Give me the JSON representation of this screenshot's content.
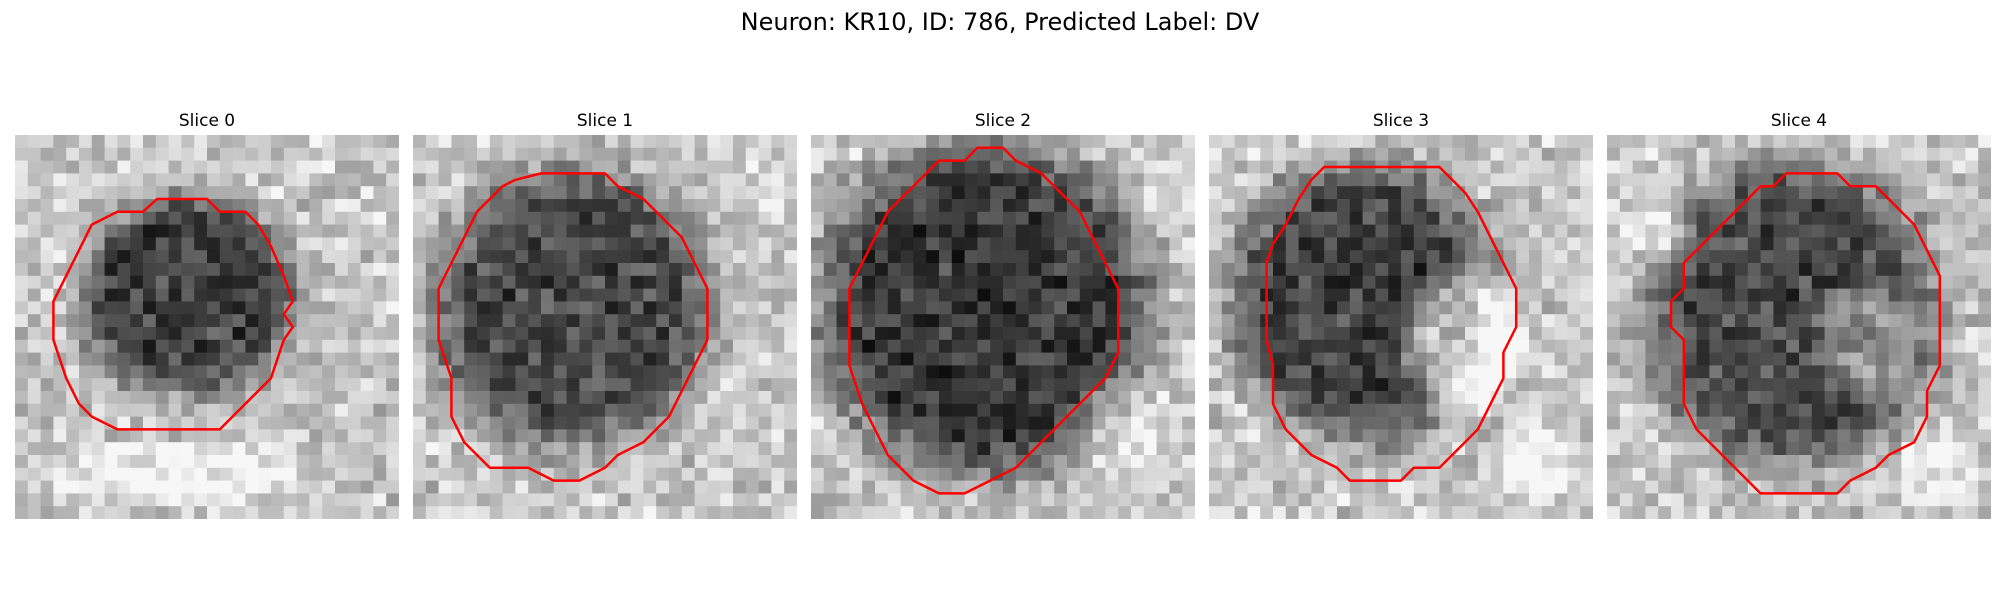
{
  "figure": {
    "title": "Neuron: KR10, ID: 786, Predicted Label: DV",
    "contour_color": "#ff0000"
  },
  "panels": [
    {
      "title": "Slice 0",
      "contour": [
        [
          11.1,
          5.0
        ],
        [
          15.0,
          5.0
        ],
        [
          16.0,
          6.0
        ],
        [
          18.0,
          6.0
        ],
        [
          19.0,
          7.0
        ],
        [
          20.0,
          8.7
        ],
        [
          21.0,
          11.0
        ],
        [
          21.7,
          13.0
        ],
        [
          21.0,
          14.0
        ],
        [
          21.7,
          15.0
        ],
        [
          21.0,
          16.0
        ],
        [
          20.0,
          19.0
        ],
        [
          18.0,
          21.0
        ],
        [
          16.0,
          23.0
        ],
        [
          8.0,
          23.0
        ],
        [
          6.0,
          22.0
        ],
        [
          5.0,
          21.0
        ],
        [
          4.0,
          19.0
        ],
        [
          3.0,
          16.0
        ],
        [
          3.0,
          13.0
        ],
        [
          4.0,
          11.0
        ],
        [
          5.0,
          9.0
        ],
        [
          6.0,
          7.0
        ],
        [
          8.0,
          6.0
        ],
        [
          10.0,
          6.0
        ]
      ],
      "dark_blobs": [
        {
          "cx": 13.5,
          "cy": 12.5,
          "rx": 8.0,
          "ry": 7.5,
          "strength": 0.85
        }
      ],
      "bright_blobs": [
        {
          "cx": 12.0,
          "cy": 26.5,
          "rx": 10.0,
          "ry": 2.5,
          "strength": 0.3
        }
      ]
    },
    {
      "title": "Slice 1",
      "contour": [
        [
          10.0,
          3.0
        ],
        [
          15.0,
          3.0
        ],
        [
          16.0,
          4.0
        ],
        [
          18.0,
          5.0
        ],
        [
          19.0,
          6.0
        ],
        [
          20.0,
          7.0
        ],
        [
          21.0,
          8.0
        ],
        [
          22.0,
          10.0
        ],
        [
          23.0,
          12.0
        ],
        [
          23.0,
          16.0
        ],
        [
          22.0,
          18.0
        ],
        [
          21.0,
          20.0
        ],
        [
          20.0,
          22.0
        ],
        [
          19.0,
          23.0
        ],
        [
          18.0,
          24.0
        ],
        [
          16.0,
          25.0
        ],
        [
          15.0,
          26.0
        ],
        [
          13.0,
          27.0
        ],
        [
          11.0,
          27.0
        ],
        [
          9.0,
          26.0
        ],
        [
          6.0,
          26.0
        ],
        [
          5.0,
          25.0
        ],
        [
          4.0,
          24.0
        ],
        [
          3.0,
          22.0
        ],
        [
          3.0,
          19.0
        ],
        [
          2.0,
          16.0
        ],
        [
          2.0,
          12.0
        ],
        [
          3.0,
          10.0
        ],
        [
          4.0,
          8.0
        ],
        [
          5.0,
          6.0
        ],
        [
          6.0,
          5.0
        ],
        [
          7.0,
          4.0
        ],
        [
          8.0,
          3.5
        ]
      ],
      "dark_blobs": [
        {
          "cx": 12.5,
          "cy": 13.5,
          "rx": 10.5,
          "ry": 10.5,
          "strength": 0.8
        }
      ],
      "bright_blobs": []
    },
    {
      "title": "Slice 2",
      "contour": [
        [
          13.0,
          1.0
        ],
        [
          15.0,
          1.0
        ],
        [
          16.0,
          2.0
        ],
        [
          18.0,
          3.0
        ],
        [
          19.0,
          4.0
        ],
        [
          20.0,
          5.0
        ],
        [
          21.0,
          6.0
        ],
        [
          22.0,
          8.0
        ],
        [
          23.0,
          10.0
        ],
        [
          24.0,
          12.0
        ],
        [
          24.0,
          17.0
        ],
        [
          23.0,
          19.0
        ],
        [
          21.0,
          21.0
        ],
        [
          19.0,
          23.0
        ],
        [
          17.0,
          25.0
        ],
        [
          16.0,
          26.0
        ],
        [
          14.0,
          27.0
        ],
        [
          12.0,
          28.0
        ],
        [
          10.0,
          28.0
        ],
        [
          8.0,
          27.0
        ],
        [
          6.0,
          25.0
        ],
        [
          5.0,
          23.0
        ],
        [
          4.0,
          21.0
        ],
        [
          3.0,
          18.0
        ],
        [
          3.0,
          12.0
        ],
        [
          4.0,
          10.0
        ],
        [
          5.0,
          8.0
        ],
        [
          6.0,
          6.0
        ],
        [
          7.0,
          5.0
        ],
        [
          8.0,
          4.0
        ],
        [
          9.0,
          3.0
        ],
        [
          10.0,
          2.0
        ],
        [
          12.0,
          2.0
        ]
      ],
      "dark_blobs": [
        {
          "cx": 13.5,
          "cy": 13.5,
          "rx": 12.5,
          "ry": 12.5,
          "strength": 0.9
        }
      ],
      "bright_blobs": [
        {
          "cx": 24.0,
          "cy": 22.0,
          "rx": 4.0,
          "ry": 4.0,
          "strength": 0.25
        }
      ]
    },
    {
      "title": "Slice 3",
      "contour": [
        [
          9.0,
          2.5
        ],
        [
          18.0,
          2.5
        ],
        [
          19.0,
          3.5
        ],
        [
          20.0,
          4.5
        ],
        [
          21.0,
          6.0
        ],
        [
          22.0,
          8.0
        ],
        [
          23.0,
          10.0
        ],
        [
          24.0,
          12.0
        ],
        [
          24.0,
          15.0
        ],
        [
          23.0,
          17.0
        ],
        [
          23.0,
          19.0
        ],
        [
          22.0,
          21.0
        ],
        [
          21.0,
          23.0
        ],
        [
          20.0,
          24.0
        ],
        [
          19.0,
          25.0
        ],
        [
          18.0,
          26.0
        ],
        [
          16.0,
          26.0
        ],
        [
          15.0,
          27.0
        ],
        [
          11.0,
          27.0
        ],
        [
          10.0,
          26.0
        ],
        [
          8.0,
          25.0
        ],
        [
          7.0,
          24.0
        ],
        [
          6.0,
          23.0
        ],
        [
          5.0,
          21.0
        ],
        [
          5.0,
          18.0
        ],
        [
          4.5,
          16.0
        ],
        [
          4.5,
          10.0
        ],
        [
          5.0,
          8.5
        ],
        [
          6.0,
          7.0
        ],
        [
          7.0,
          5.0
        ],
        [
          8.0,
          3.5
        ]
      ],
      "dark_blobs": [
        {
          "cx": 12.0,
          "cy": 13.0,
          "rx": 10.0,
          "ry": 10.5,
          "strength": 0.85
        }
      ],
      "bright_blobs": [
        {
          "cx": 20.0,
          "cy": 16.0,
          "rx": 4.5,
          "ry": 5.5,
          "strength": 0.8
        },
        {
          "cx": 25.5,
          "cy": 25.5,
          "rx": 3.0,
          "ry": 3.0,
          "strength": 0.35
        }
      ]
    },
    {
      "title": "Slice 4",
      "contour": [
        [
          14.0,
          3.0
        ],
        [
          18.0,
          3.0
        ],
        [
          19.0,
          4.0
        ],
        [
          21.0,
          4.0
        ],
        [
          22.0,
          5.0
        ],
        [
          23.0,
          6.0
        ],
        [
          24.0,
          7.0
        ],
        [
          25.0,
          9.0
        ],
        [
          26.0,
          11.0
        ],
        [
          26.0,
          18.0
        ],
        [
          25.0,
          20.0
        ],
        [
          25.0,
          22.0
        ],
        [
          24.0,
          24.0
        ],
        [
          22.0,
          25.0
        ],
        [
          21.0,
          26.0
        ],
        [
          19.0,
          27.0
        ],
        [
          18.0,
          28.0
        ],
        [
          12.0,
          28.0
        ],
        [
          11.0,
          27.0
        ],
        [
          9.0,
          25.0
        ],
        [
          7.0,
          23.0
        ],
        [
          6.0,
          21.0
        ],
        [
          6.0,
          16.0
        ],
        [
          5.0,
          15.0
        ],
        [
          5.0,
          13.0
        ],
        [
          6.0,
          12.0
        ],
        [
          6.0,
          10.0
        ],
        [
          7.0,
          9.0
        ],
        [
          8.0,
          8.0
        ],
        [
          9.0,
          7.0
        ],
        [
          10.0,
          6.0
        ],
        [
          11.0,
          5.0
        ],
        [
          12.0,
          4.0
        ],
        [
          13.0,
          4.0
        ]
      ],
      "dark_blobs": [
        {
          "cx": 14.5,
          "cy": 14.0,
          "rx": 11.0,
          "ry": 11.5,
          "strength": 0.8
        }
      ],
      "bright_blobs": [
        {
          "cx": 20.5,
          "cy": 16.0,
          "rx": 4.0,
          "ry": 4.5,
          "strength": 0.5
        },
        {
          "cx": 4.0,
          "cy": 7.5,
          "rx": 2.5,
          "ry": 2.0,
          "strength": 0.45
        },
        {
          "cx": 26.0,
          "cy": 26.0,
          "rx": 3.0,
          "ry": 3.0,
          "strength": 0.3
        }
      ]
    }
  ]
}
